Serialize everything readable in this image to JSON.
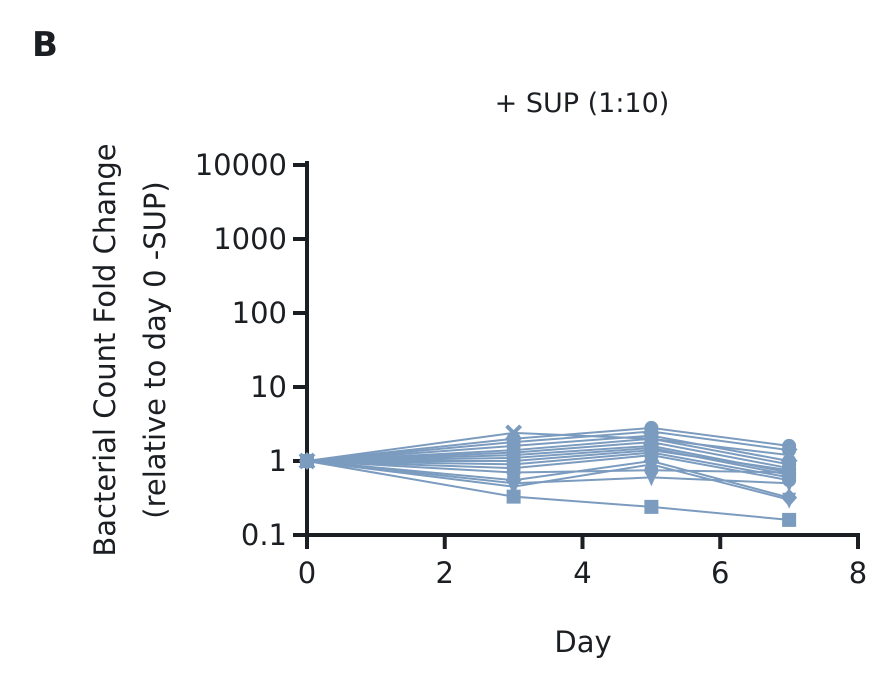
{
  "panel_label": "B",
  "chart_data": {
    "type": "line",
    "title": "+ SUP (1:10)",
    "xlabel": "Day",
    "ylabel": [
      "Bacterial Count Fold Change",
      "(relative to day 0 -SUP)"
    ],
    "xlim": [
      0,
      8
    ],
    "ylim": [
      0.1,
      10000
    ],
    "yscale": "log",
    "xticks": [
      "0",
      "2",
      "4",
      "6",
      "8"
    ],
    "yticks": [
      "0.1",
      "1",
      "10",
      "100",
      "1000",
      "10000"
    ],
    "grid": false,
    "color": "#7b9bbf",
    "x": [
      0,
      3,
      5,
      7
    ],
    "series": [
      {
        "marker": "square",
        "values": [
          1,
          0.33,
          0.24,
          0.16
        ]
      },
      {
        "marker": "x",
        "values": [
          1,
          2.4,
          2.0,
          1.2
        ]
      },
      {
        "marker": "circle",
        "values": [
          1,
          2.0,
          2.8,
          1.6
        ]
      },
      {
        "marker": "circle",
        "values": [
          1,
          1.8,
          2.5,
          1.4
        ]
      },
      {
        "marker": "circle",
        "values": [
          1,
          1.6,
          2.2,
          1.0
        ]
      },
      {
        "marker": "circle",
        "values": [
          1,
          1.4,
          2.0,
          0.9
        ]
      },
      {
        "marker": "circle",
        "values": [
          1,
          1.3,
          1.8,
          0.8
        ]
      },
      {
        "marker": "circle",
        "values": [
          1,
          1.2,
          1.6,
          0.7
        ]
      },
      {
        "marker": "circle",
        "values": [
          1,
          1.1,
          1.5,
          0.65
        ]
      },
      {
        "marker": "circle",
        "values": [
          1,
          1.0,
          1.4,
          0.75
        ]
      },
      {
        "marker": "circle",
        "values": [
          1,
          0.9,
          1.3,
          0.6
        ]
      },
      {
        "marker": "circle",
        "values": [
          1,
          0.8,
          1.2,
          0.55
        ]
      },
      {
        "marker": "circle",
        "values": [
          1,
          0.7,
          0.75,
          0.7
        ]
      },
      {
        "marker": "diamond",
        "values": [
          1,
          0.55,
          1.0,
          0.32
        ]
      },
      {
        "marker": "triangle-down",
        "values": [
          1,
          0.5,
          0.6,
          0.5
        ]
      },
      {
        "marker": "triangle-down",
        "values": [
          1,
          0.45,
          0.9,
          0.3
        ]
      }
    ]
  }
}
